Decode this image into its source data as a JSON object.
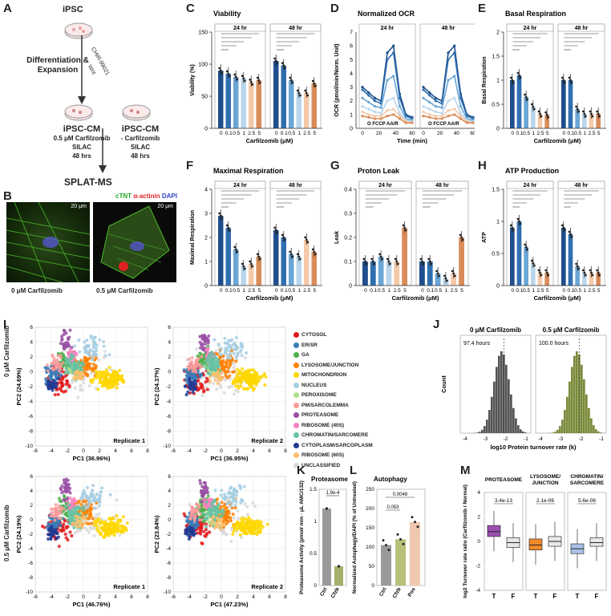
{
  "panels": {
    "A": "A",
    "B": "B",
    "C": "C",
    "D": "D",
    "E": "E",
    "F": "F",
    "G": "G",
    "H": "H",
    "I": "I",
    "J": "J",
    "K": "K",
    "L": "L",
    "M": "M"
  },
  "panelA": {
    "ipsc": "iPSC",
    "diff": "Differentiation &",
    "expansion": "Expansion",
    "chir": "CHIR-99021",
    "wnt": "Wnt",
    "cm_left": "iPSC-CM",
    "cm_left_sub1": "0.5 μM Carfilzomib",
    "cm_left_sub2": "SILAC",
    "cm_left_sub3": "48 hrs",
    "cm_right": "iPSC-CM",
    "cm_right_sub1": "- Carfilzomib",
    "cm_right_sub2": "SILAC",
    "cm_right_sub3": "48 hrs",
    "splat": "SPLAT-MS"
  },
  "panelB": {
    "ctnt": "cTNT",
    "actinin": "α-actinin",
    "dapi": "DAPI",
    "scale1": "20 μm",
    "scale2": "20 μm",
    "cap_left": "0 μM Carfilzomib",
    "cap_right": "0.5 μM Carfilzomib"
  },
  "panelC": {
    "title": "Viability",
    "ylabel": "Viability (%)",
    "xlabel": "Carfilzomib (μM)",
    "h1": "24 hr",
    "h2": "48 hr"
  },
  "panelD": {
    "title": "Normalized OCR",
    "ylabel": "OCR (pmol/min/Norm. Unit)",
    "xlabel": "Time (min)",
    "h1": "24 hr",
    "h2": "48 hr",
    "inj": "O  FCCP AA/R"
  },
  "panelE": {
    "title": "Basal Respiration",
    "ylabel": "Basal Respiration",
    "xlabel": "Carfilzomib (μM)",
    "h1": "24 hr",
    "h2": "48 hr"
  },
  "panelF": {
    "title": "Maximal Respiration",
    "ylabel": "Maximal Respiration",
    "xlabel": "Carfilzomib (μM)",
    "h1": "24 hr",
    "h2": "48 hr"
  },
  "panelG": {
    "title": "Proton Leak",
    "ylabel": "Leak",
    "xlabel": "Carfilzomib (μM)",
    "h1": "24 hr",
    "h2": "48 hr"
  },
  "panelH": {
    "title": "ATP Production",
    "ylabel": "ATP",
    "xlabel": "Carfilzomib (μM)",
    "h1": "24 hr",
    "h2": "48 hr"
  },
  "dose_ticks": [
    "0",
    "0.1",
    "0.5",
    "1",
    "2.5",
    "5"
  ],
  "panelI": {
    "row1": "0 μM Carfilzomib",
    "row2": "0.5 μM Carfilzomib",
    "plots": [
      {
        "xlabel": "PC1 (36.96%)",
        "ylabel": "PC2 (24.69%)",
        "rep": "Replicate 1"
      },
      {
        "xlabel": "PC1 (36.95%)",
        "ylabel": "PC2 (24.37%)",
        "rep": "Replicate 2"
      },
      {
        "xlabel": "PC1 (46.76%)",
        "ylabel": "PC2 (24.19%)",
        "rep": "Replicate 1"
      },
      {
        "xlabel": "PC1 (47.23%)",
        "ylabel": "PC2 (23.84%)",
        "rep": "Replicate 2"
      }
    ],
    "legend": [
      {
        "label": "CYTOSOL",
        "color": "#e41a1c"
      },
      {
        "label": "ER/SR",
        "color": "#377eb8"
      },
      {
        "label": "GA",
        "color": "#4daf4a"
      },
      {
        "label": "LYSOSOME/JUNCTION",
        "color": "#ff7f00"
      },
      {
        "label": "MITOCHONDRION",
        "color": "#ffd700"
      },
      {
        "label": "NUCLEUS",
        "color": "#a6cee3"
      },
      {
        "label": "PEROXISOME",
        "color": "#b2df8a"
      },
      {
        "label": "PM/SARCOLEMMA",
        "color": "#fb9a99"
      },
      {
        "label": "PROTEASOME",
        "color": "#984ea3"
      },
      {
        "label": "RIBOSOME (40S)",
        "color": "#f781bf"
      },
      {
        "label": "CHROMATIN/SARCOMERE",
        "color": "#66c2a5"
      },
      {
        "label": "CYTOPLASM/SARCOPLASM",
        "color": "#1f3a93"
      },
      {
        "label": "RIBOSOME (60S)",
        "color": "#fdbf6f"
      },
      {
        "label": "UNCLASSIFIED",
        "color": "#d9d9d9"
      }
    ]
  },
  "panelJ": {
    "h1": "0 μM Carfilzomib",
    "h2": "0.5 μM Carfilzomib",
    "t1": "97.4 hours",
    "t2": "100.0 hours",
    "ylabel": "Count",
    "xlabel": "log10 Protein turnover rate (k)"
  },
  "panelK": {
    "title": "Proteasome",
    "ylabel": "Proteasome Activity (pmol/ min · μL AMC/132)",
    "pval": "1.9e-4",
    "cats": [
      "Ctrl",
      "Cfzb"
    ]
  },
  "panelL": {
    "title": "Autophagy",
    "ylabel": "Normalized Autophagy/DAPI (% of Untreated)",
    "p1": "0.0048",
    "p2": "0.053",
    "cats": [
      "Ctrl",
      "Cfzb",
      "Pos"
    ]
  },
  "panelM": {
    "ylabel": "log2 Turnover rate ratio (Carfilzomib / Normal)",
    "groups": [
      {
        "title": "PROTEASOME",
        "pval": "3.4e-13"
      },
      {
        "title": "LYSOSOME/ JUNCTION",
        "pval": "2.1e-06"
      },
      {
        "title": "CHROMATIN/ SARCOMERE",
        "pval": "5.6e-06"
      }
    ],
    "cats": [
      "T",
      "F"
    ]
  },
  "chart_data": [
    {
      "type": "bar",
      "title": "Viability",
      "categories": [
        "0",
        "0.1",
        "0.5",
        "1",
        "2.5",
        "5"
      ],
      "series": [
        {
          "name": "24 hr",
          "values": [
            90,
            85,
            80,
            78,
            72,
            75
          ]
        },
        {
          "name": "48 hr",
          "values": [
            105,
            98,
            75,
            55,
            55,
            70
          ]
        }
      ],
      "ylim": [
        0,
        150
      ],
      "ylabel": "Viability (%)",
      "xlabel": "Carfilzomib (μM)"
    },
    {
      "type": "line",
      "title": "Normalized OCR",
      "ylabel": "OCR (pmol/min/Norm. Unit)",
      "xlabel": "Time (min)"
    },
    {
      "type": "bar",
      "title": "Basal Respiration",
      "categories": [
        "0",
        "0.1",
        "0.5",
        "1",
        "2.5",
        "5"
      ],
      "series": [
        {
          "name": "24 hr",
          "values": [
            1.0,
            1.1,
            0.65,
            0.45,
            0.3,
            0.28
          ]
        },
        {
          "name": "48 hr",
          "values": [
            1.0,
            1.0,
            0.4,
            0.3,
            0.3,
            0.3
          ]
        }
      ],
      "ylim": [
        0,
        2.0
      ]
    },
    {
      "type": "bar",
      "title": "Maximal Respiration",
      "categories": [
        "0",
        "0.1",
        "0.5",
        "1",
        "2.5",
        "5"
      ],
      "series": [
        {
          "name": "24 hr",
          "values": [
            2.9,
            2.4,
            1.5,
            0.8,
            0.9,
            1.2
          ]
        },
        {
          "name": "48 hr",
          "values": [
            2.3,
            2.0,
            1.3,
            1.2,
            1.9,
            1.4
          ]
        }
      ],
      "ylim": [
        0,
        4
      ]
    },
    {
      "type": "bar",
      "title": "Proton Leak",
      "categories": [
        "0",
        "0.1",
        "0.5",
        "1",
        "2.5",
        "5"
      ],
      "series": [
        {
          "name": "24 hr",
          "values": [
            0.1,
            0.1,
            0.12,
            0.1,
            0.1,
            0.24
          ]
        },
        {
          "name": "48 hr",
          "values": [
            0.1,
            0.1,
            0.05,
            0.03,
            0.05,
            0.2
          ]
        }
      ],
      "ylim": [
        0,
        0.4
      ]
    },
    {
      "type": "bar",
      "title": "ATP Production",
      "categories": [
        "0",
        "0.1",
        "0.5",
        "1",
        "2.5",
        "5"
      ],
      "series": [
        {
          "name": "24 hr",
          "values": [
            0.9,
            1.0,
            0.6,
            0.35,
            0.2,
            0.2
          ]
        },
        {
          "name": "48 hr",
          "values": [
            0.9,
            0.8,
            0.3,
            0.2,
            0.2,
            0.2
          ]
        }
      ],
      "ylim": [
        0,
        1.5
      ]
    },
    {
      "type": "bar",
      "title": "Proteasome",
      "categories": [
        "Ctrl",
        "Cfzb"
      ],
      "values": [
        1.2,
        0.3
      ],
      "ylim": [
        0,
        1.5
      ]
    },
    {
      "type": "bar",
      "title": "Autophagy",
      "categories": [
        "Ctrl",
        "Cfzb",
        "Pos"
      ],
      "values": [
        105,
        120,
        165
      ],
      "ylim": [
        0,
        250
      ]
    }
  ]
}
